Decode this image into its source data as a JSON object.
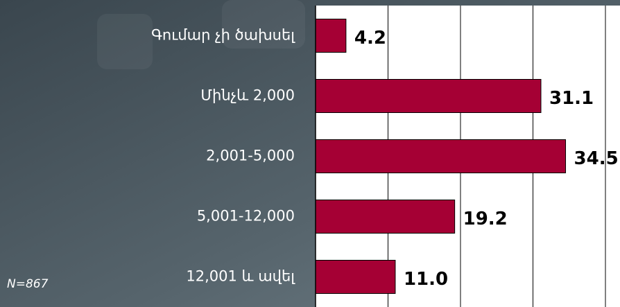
{
  "chart_data": {
    "type": "bar",
    "orientation": "horizontal",
    "categories": [
      "Գումար չի ծախսել",
      "Մինչև 2,000",
      "2,001-5,000",
      "5,001-12,000",
      "12,001 և ավել"
    ],
    "values": [
      4.2,
      31.1,
      34.5,
      19.2,
      11.0
    ],
    "value_labels": [
      "4.2",
      "31.1",
      "34.5",
      "19.2",
      "11.0"
    ],
    "color": "#a50034",
    "xlim": [
      0,
      40
    ],
    "xticks": [
      0,
      10,
      20,
      30,
      40
    ],
    "grid": true,
    "annotation": "N=867"
  }
}
